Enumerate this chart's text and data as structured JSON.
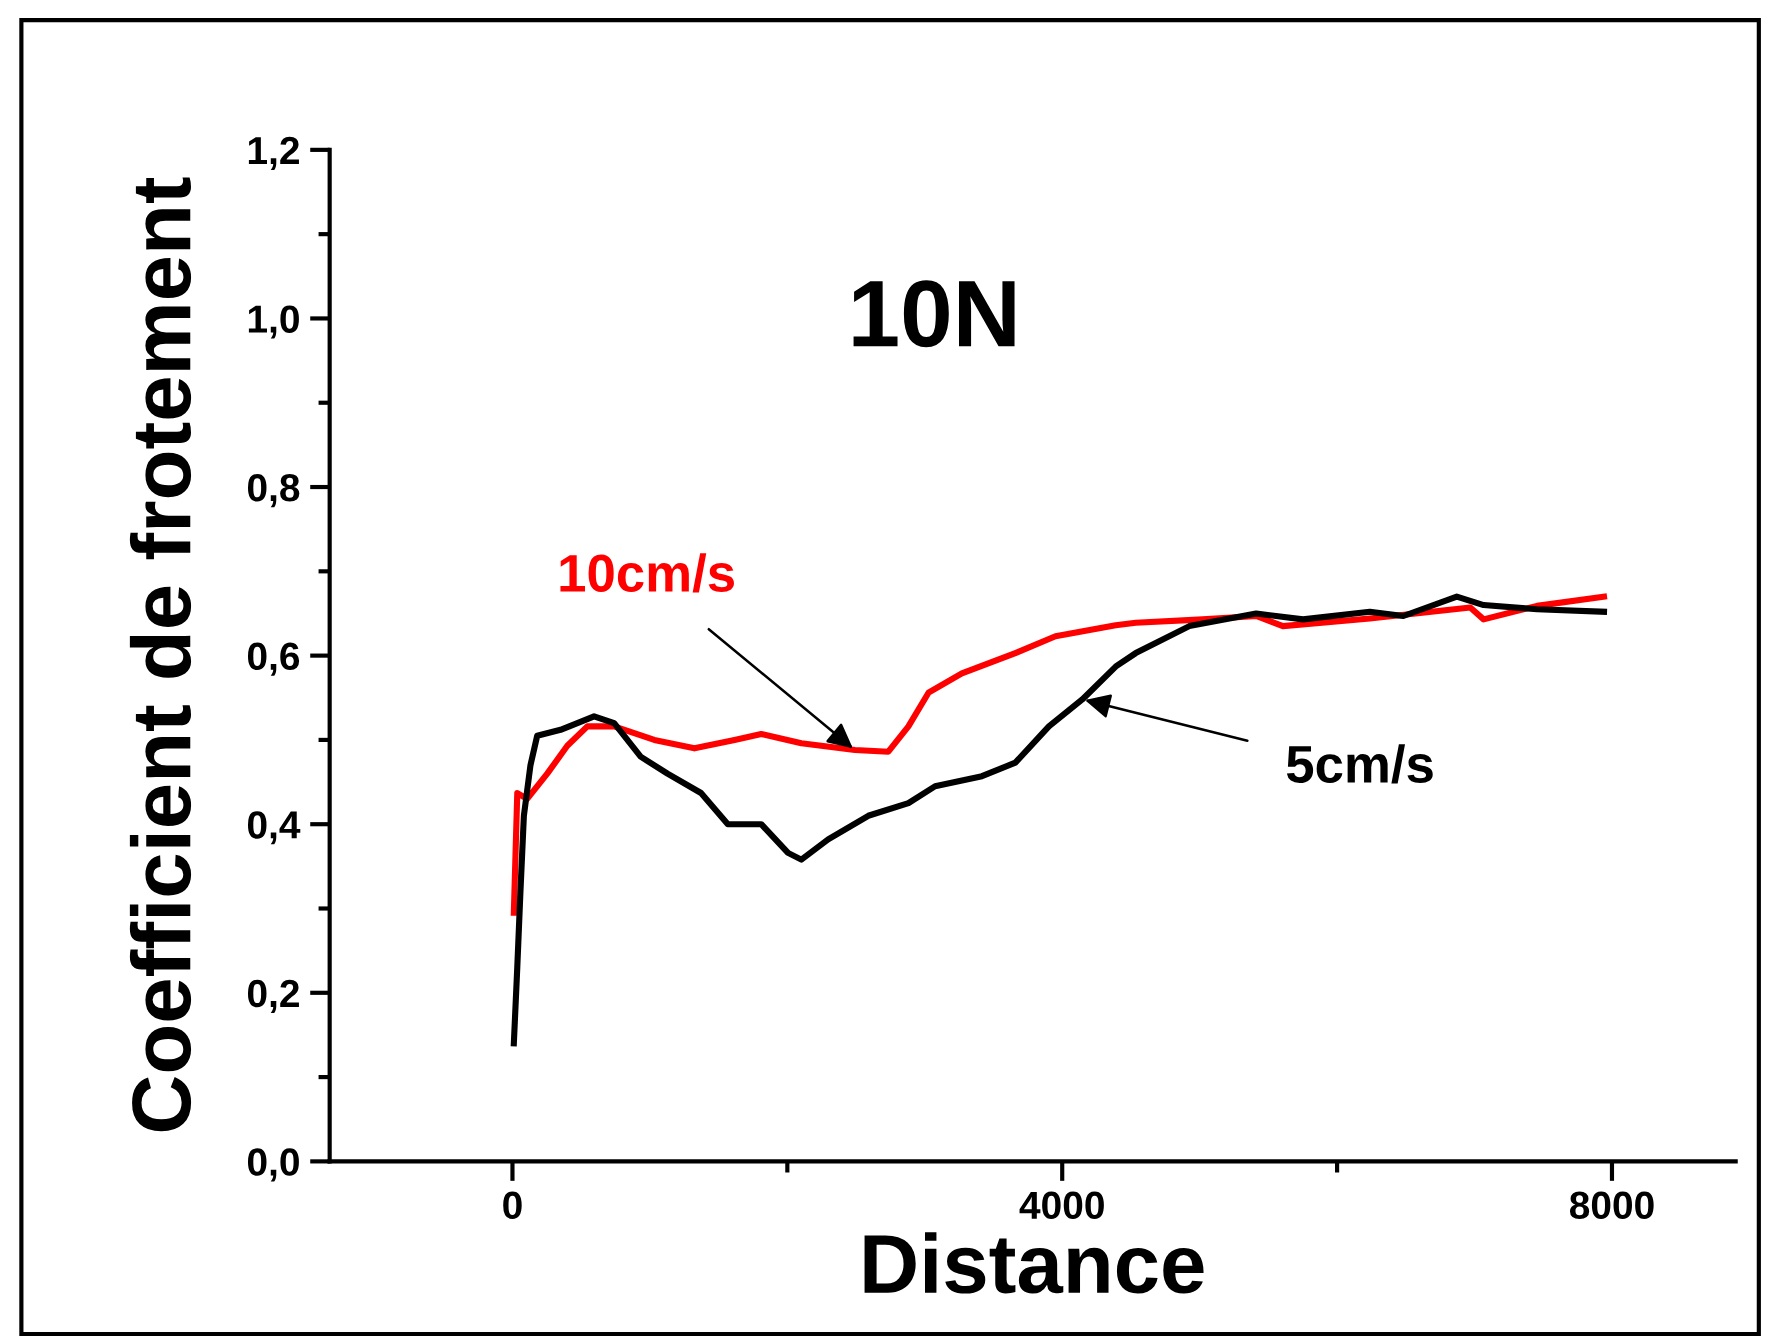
{
  "chart_data": {
    "type": "line",
    "title": "10N",
    "xlabel": "Distance",
    "ylabel": "Coefficient de frotement",
    "xlim": [
      -1330,
      8900
    ],
    "ylim": [
      0,
      1.2
    ],
    "xticks": [
      0,
      {
        "value": 2000,
        "label": null
      },
      4000,
      {
        "value": 6000,
        "label": null
      },
      8000
    ],
    "yticks": [
      {
        "value": 0,
        "label": "0,0"
      },
      {
        "value": 0.1,
        "label": null
      },
      {
        "value": 0.2,
        "label": "0,2"
      },
      {
        "value": 0.3,
        "label": null
      },
      {
        "value": 0.4,
        "label": "0,4"
      },
      {
        "value": 0.5,
        "label": null
      },
      {
        "value": 0.6,
        "label": "0,6"
      },
      {
        "value": 0.7,
        "label": null
      },
      {
        "value": 0.8,
        "label": "0,8"
      },
      {
        "value": 0.9,
        "label": null
      },
      {
        "value": 1.0,
        "label": "1,0"
      },
      {
        "value": 1.1,
        "label": null
      },
      {
        "value": 1.2,
        "label": "1,2"
      }
    ],
    "grid": false,
    "legend": false,
    "series": [
      {
        "color": "#ff0000",
        "x": [
          10,
          35,
          107,
          253,
          399,
          545,
          740,
          1032,
          1324,
          1616,
          1810,
          2102,
          2492,
          2735,
          2881,
          3027,
          3270,
          3659,
          3951,
          4389,
          4535,
          5022,
          5411,
          5606,
          6238,
          6969,
          7066,
          7455,
          7942
        ],
        "values": [
          0.295,
          0.437,
          0.43,
          0.46,
          0.493,
          0.516,
          0.516,
          0.5,
          0.49,
          0.5,
          0.507,
          0.496,
          0.488,
          0.486,
          0.516,
          0.556,
          0.579,
          0.603,
          0.623,
          0.636,
          0.639,
          0.643,
          0.647,
          0.635,
          0.644,
          0.657,
          0.643,
          0.659,
          0.67
        ]
      },
      {
        "color": "#000000",
        "x": [
          10,
          35,
          58,
          83,
          131,
          180,
          350,
          594,
          740,
          934,
          1128,
          1372,
          1567,
          1810,
          2005,
          2102,
          2297,
          2589,
          2881,
          3075,
          3416,
          3659,
          3903,
          4146,
          4389,
          4535,
          4925,
          5411,
          5752,
          6238,
          6482,
          6871,
          7066,
          7455,
          7942
        ],
        "values": [
          0.14,
          0.23,
          0.32,
          0.41,
          0.47,
          0.505,
          0.512,
          0.528,
          0.52,
          0.48,
          0.46,
          0.437,
          0.4,
          0.4,
          0.366,
          0.358,
          0.382,
          0.41,
          0.425,
          0.445,
          0.457,
          0.473,
          0.516,
          0.548,
          0.587,
          0.603,
          0.635,
          0.65,
          0.643,
          0.652,
          0.647,
          0.67,
          0.66,
          0.655,
          0.652
        ]
      }
    ],
    "annotations": [
      {
        "text": "10cm/s",
        "x": 2492,
        "y": 0.488
      },
      {
        "text": "5cm/s",
        "x": 4146,
        "y": 0.548
      }
    ]
  }
}
